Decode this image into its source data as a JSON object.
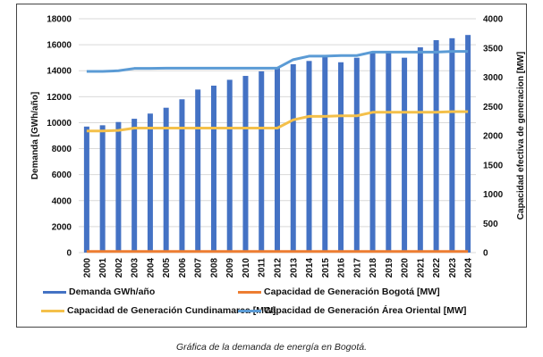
{
  "chart_data": {
    "type": "bar+line",
    "categories": [
      "2000",
      "2001",
      "2002",
      "2003",
      "2004",
      "2005",
      "2006",
      "2007",
      "2008",
      "2009",
      "2010",
      "2011",
      "2012",
      "2013",
      "2014",
      "2015",
      "2016",
      "2017",
      "2018",
      "2019",
      "2020",
      "2021",
      "2022",
      "2023",
      "2024"
    ],
    "ylabel": "Demanda [GWh/año]",
    "y2label": "Capacidad efectiva de generacion [MW]",
    "ylim": [
      0,
      18000
    ],
    "y2lim": [
      0,
      4000
    ],
    "yticks": [
      0,
      2000,
      4000,
      6000,
      8000,
      10000,
      12000,
      14000,
      16000,
      18000
    ],
    "y2ticks": [
      0,
      500,
      1000,
      1500,
      2000,
      2500,
      3000,
      3500,
      4000
    ],
    "grid": true,
    "legend_placement": "bottom",
    "series": [
      {
        "name": "Demanda GWh/año",
        "type": "bar",
        "axis": "left",
        "color": "#4472C4",
        "values": [
          9700,
          9800,
          10050,
          10300,
          10700,
          11150,
          11800,
          12550,
          12850,
          13300,
          13600,
          13950,
          14200,
          14500,
          14750,
          15100,
          14650,
          15000,
          15400,
          15500,
          15000,
          15800,
          16350,
          16500,
          16750
        ]
      },
      {
        "name": "Capacidad de Generación Bogotá [MW]",
        "type": "line",
        "axis": "right",
        "color": "#ED7D31",
        "values": [
          20,
          20,
          20,
          20,
          20,
          20,
          20,
          20,
          20,
          20,
          20,
          20,
          20,
          20,
          20,
          20,
          20,
          20,
          20,
          20,
          20,
          20,
          20,
          20,
          20
        ]
      },
      {
        "name": "Capacidad de Generación Cundinamarca [MW]",
        "type": "line",
        "axis": "right",
        "color": "#F4C04A",
        "values": [
          2080,
          2080,
          2090,
          2130,
          2130,
          2130,
          2130,
          2130,
          2130,
          2130,
          2130,
          2130,
          2130,
          2270,
          2330,
          2330,
          2340,
          2340,
          2400,
          2400,
          2400,
          2400,
          2400,
          2410,
          2410
        ]
      },
      {
        "name": "Capacidad de Generación Área Oriental [MW]",
        "type": "line",
        "axis": "right",
        "color": "#5B9BD5",
        "values": [
          3100,
          3100,
          3110,
          3150,
          3150,
          3155,
          3155,
          3155,
          3155,
          3155,
          3155,
          3155,
          3155,
          3300,
          3360,
          3360,
          3370,
          3370,
          3430,
          3430,
          3430,
          3430,
          3430,
          3440,
          3440
        ]
      }
    ]
  },
  "caption": "Gráfica de la demanda de energía en Bogotá."
}
